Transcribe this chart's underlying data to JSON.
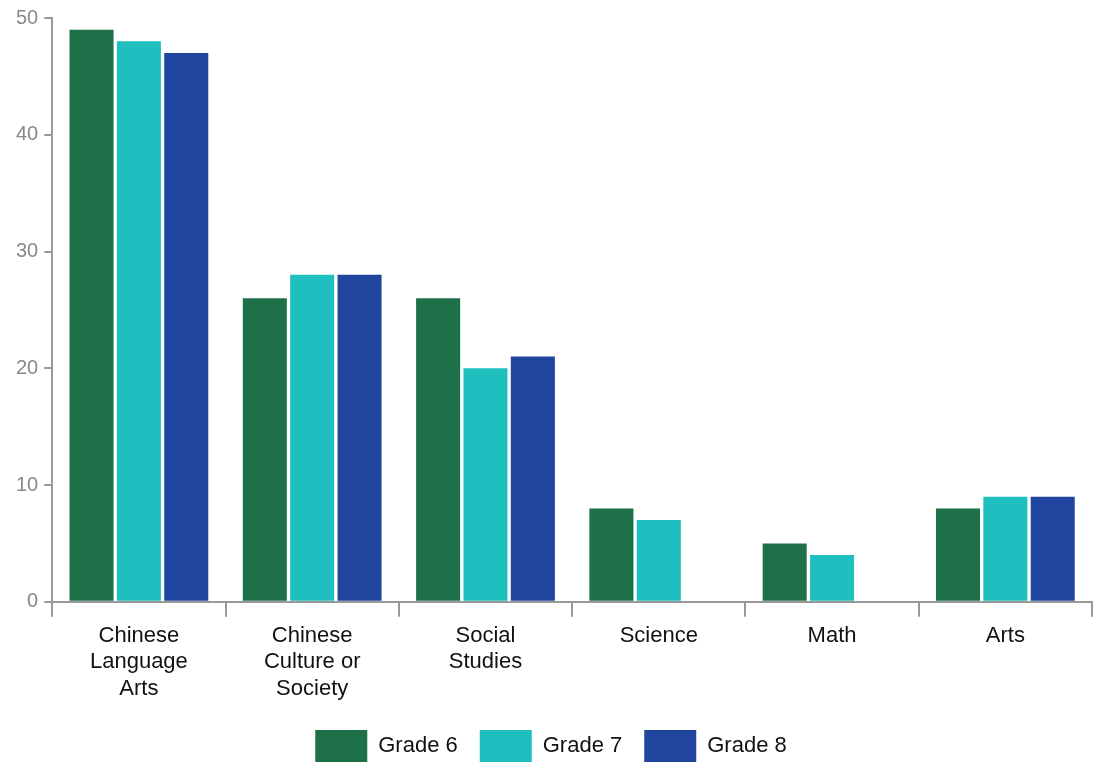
{
  "chart_data": {
    "type": "bar",
    "categories": [
      "Chinese Language Arts",
      "Chinese Culture or Society",
      "Social Studies",
      "Science",
      "Math",
      "Arts"
    ],
    "series": [
      {
        "name": "Grade 6",
        "color": "#1e7049",
        "values": [
          49,
          26,
          26,
          8,
          5,
          8
        ]
      },
      {
        "name": "Grade 7",
        "color": "#1fbfbf",
        "values": [
          48,
          28,
          20,
          7,
          4,
          9
        ]
      },
      {
        "name": "Grade 8",
        "color": "#1f459e",
        "values": [
          47,
          28,
          21,
          null,
          null,
          9
        ]
      }
    ],
    "ylim": [
      0,
      50
    ],
    "yticks": [
      0,
      10,
      20,
      30,
      40,
      50
    ],
    "grid": false,
    "legend": "bottom"
  }
}
